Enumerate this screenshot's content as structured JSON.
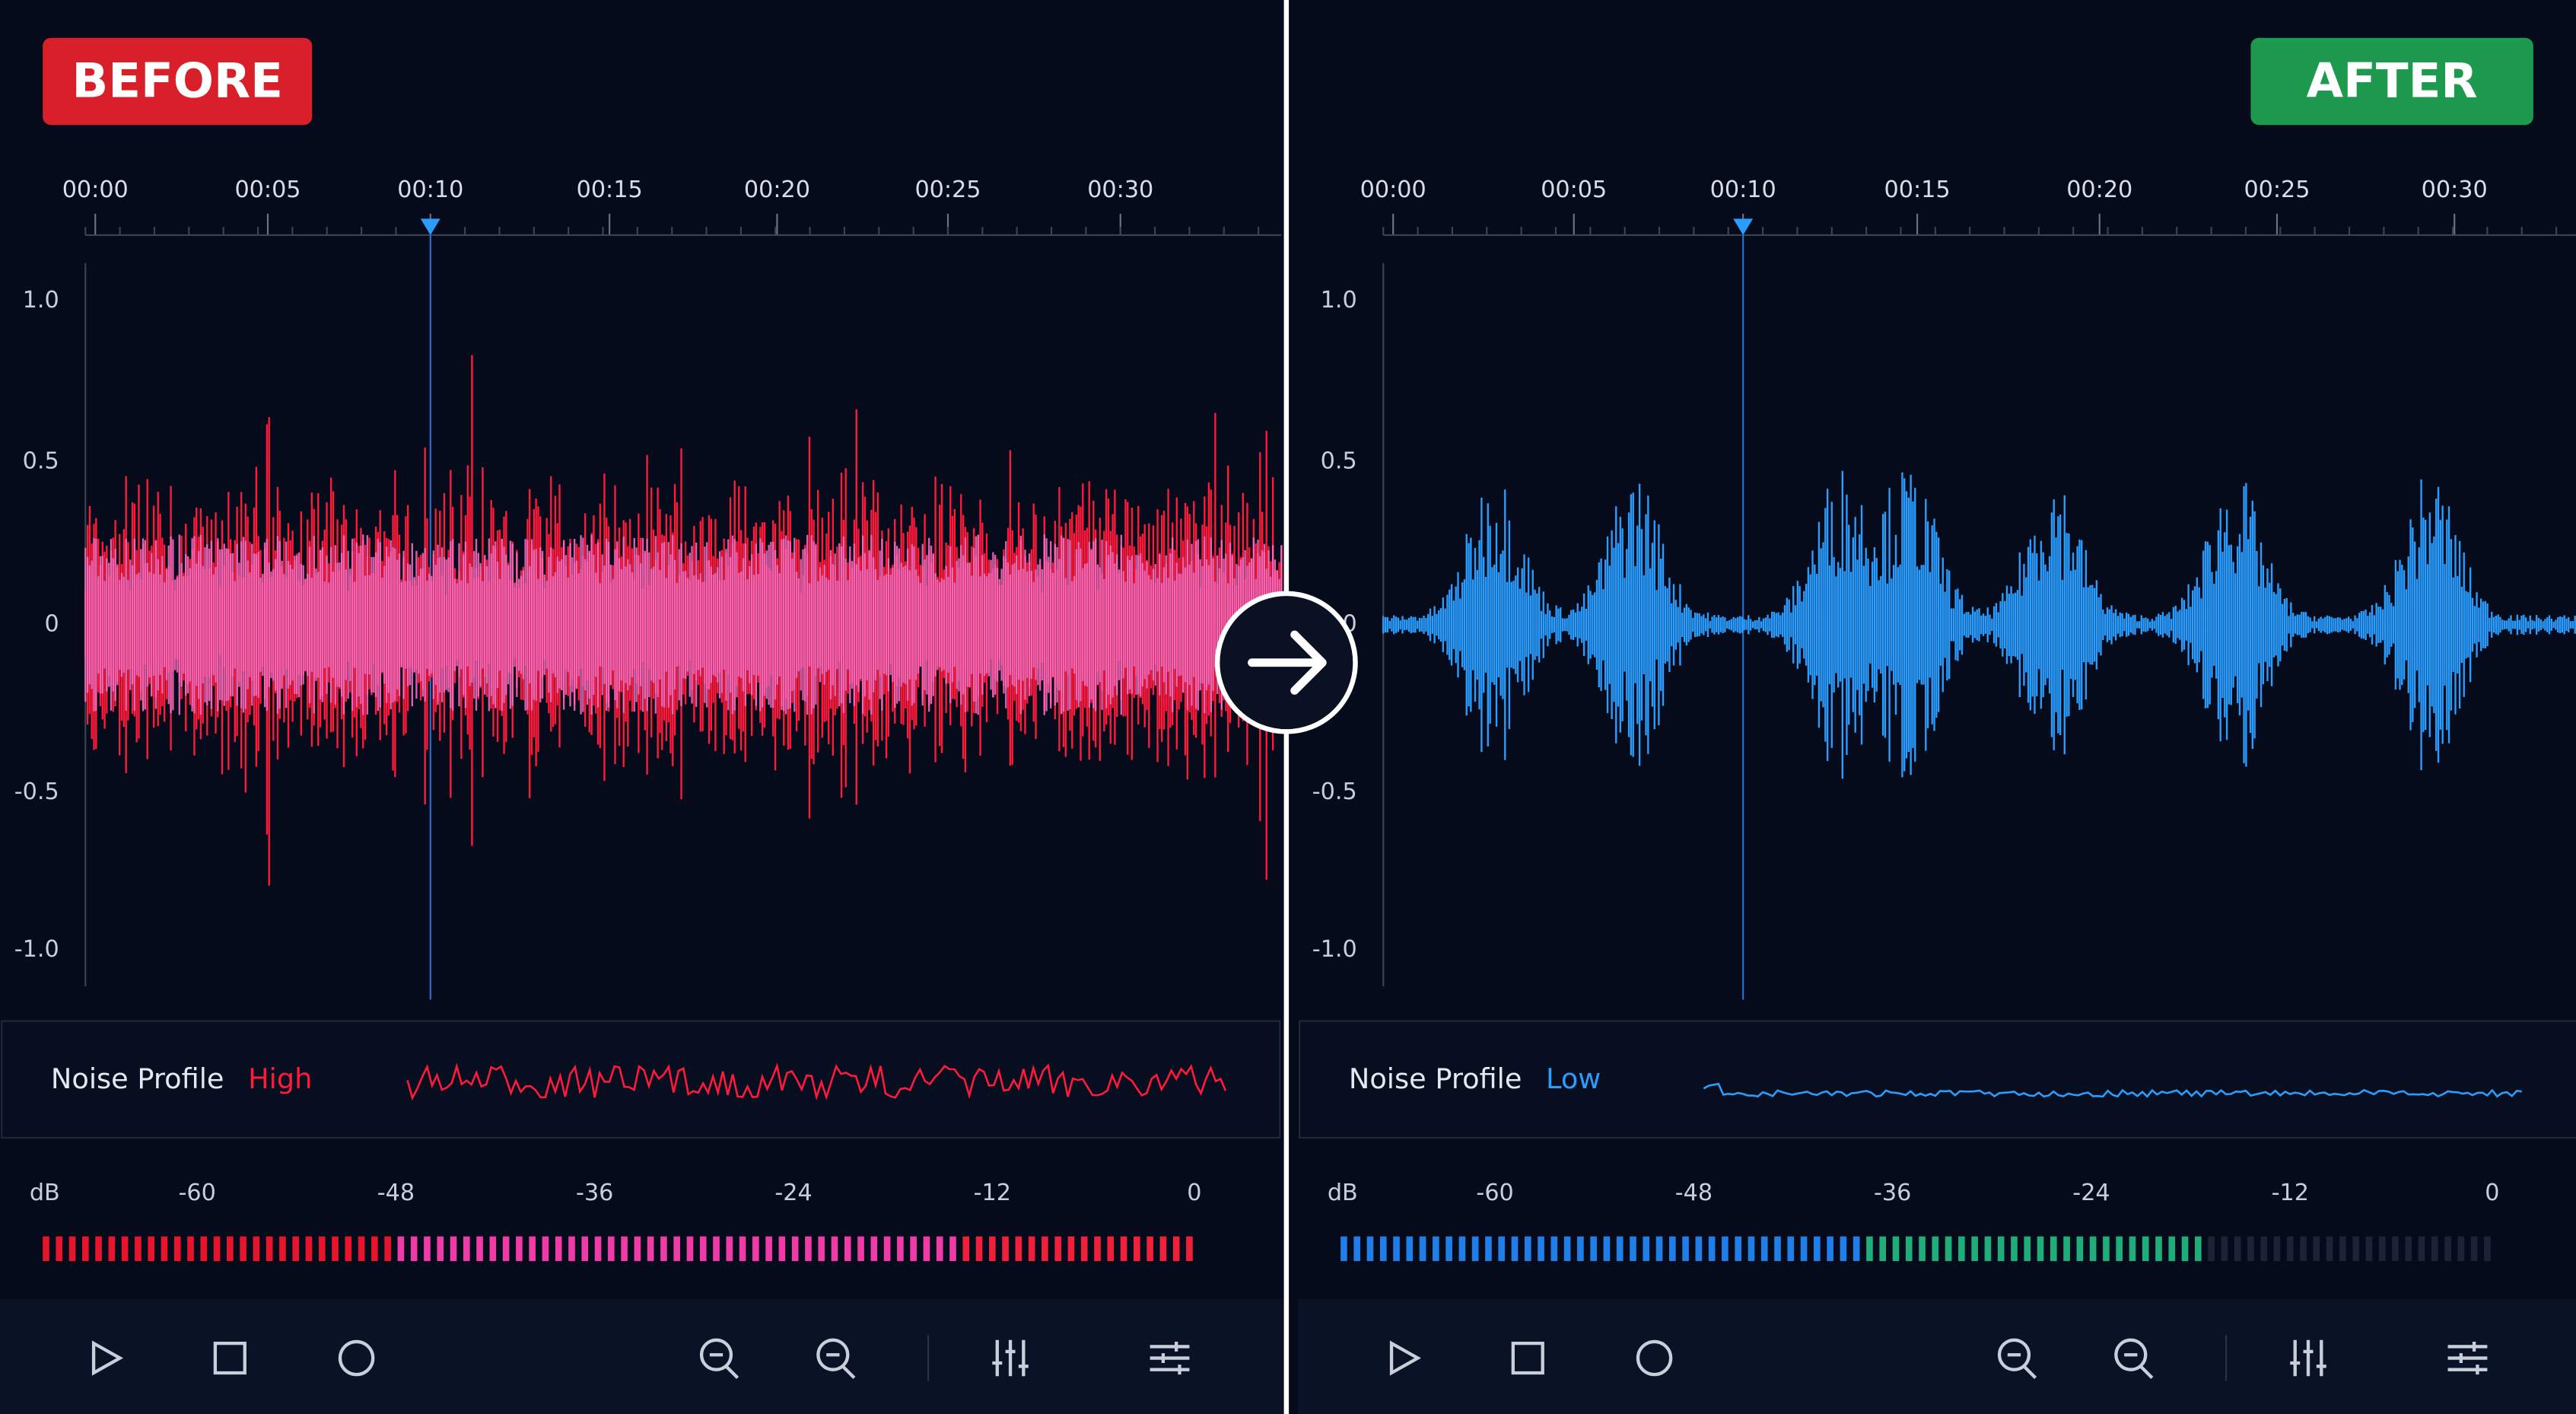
{
  "panels": [
    {
      "badge": "BEFORE",
      "time_ticks": [
        "00:00",
        "00:05",
        "00:10",
        "00:15",
        "00:20",
        "00:25",
        "00:30"
      ],
      "amp_ticks": [
        "1.0",
        "0.5",
        "0",
        "-0.5",
        "-1.0"
      ],
      "noise_label": "Noise Profile",
      "noise_level": "High",
      "db_label": "dB",
      "db_ticks": [
        "-60",
        "-48",
        "-36",
        "-24",
        "-12",
        "0"
      ]
    },
    {
      "badge": "AFTER",
      "time_ticks": [
        "00:00",
        "00:05",
        "00:10",
        "00:15",
        "00:20",
        "00:25",
        "00:30"
      ],
      "amp_ticks": [
        "1.0",
        "0.5",
        "0",
        "-0.5",
        "-1.0"
      ],
      "noise_label": "Noise Profile",
      "noise_level": "Low",
      "db_label": "dB",
      "db_ticks": [
        "-60",
        "-48",
        "-36",
        "-24",
        "-12",
        "0"
      ]
    }
  ]
}
